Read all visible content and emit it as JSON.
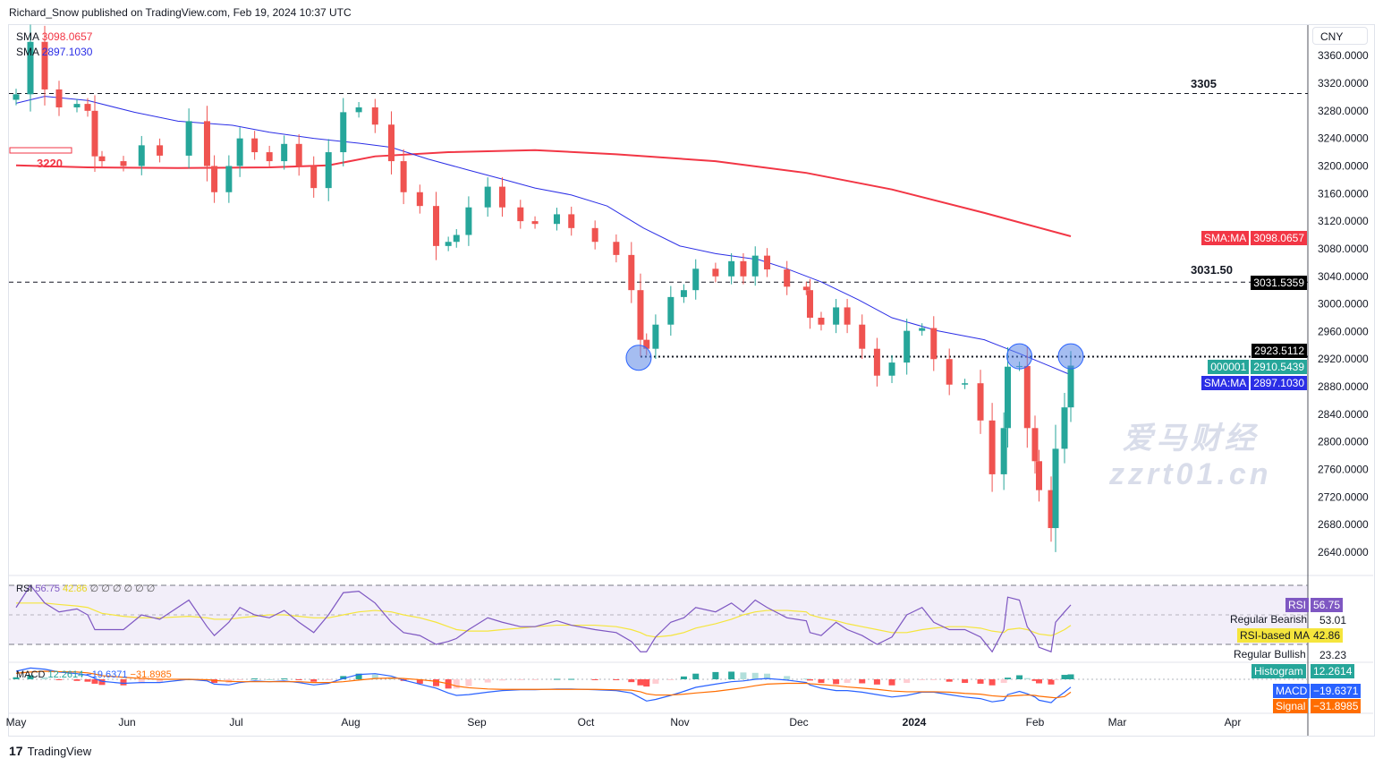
{
  "header": {
    "text": "Richard_Snow published on TradingView.com, Feb 19, 2024 10:37 UTC"
  },
  "currency": "CNY",
  "legend": {
    "sma200": {
      "name": "SMA",
      "value": "3098.0657"
    },
    "sma50": {
      "name": "SMA",
      "value": "2897.1030"
    },
    "rsi": {
      "name": "RSI",
      "value": "56.75",
      "ma": "42.86",
      "extras": "∅ ∅ ∅ ∅ ∅ ∅"
    },
    "macd": {
      "name": "MACD",
      "hist": "12.2614",
      "macd": "−19.6371",
      "signal": "−31.8985"
    }
  },
  "levels": {
    "l3305": "3305",
    "l3031": "3031.50",
    "l3220": "3220"
  },
  "price_labels": {
    "sma200": {
      "tag": "SMA:MA",
      "value": "3098.0657"
    },
    "level": {
      "value": "3031.5359"
    },
    "dotted": {
      "value": "2923.5112"
    },
    "symbol": {
      "tag": "000001",
      "value": "2910.5439"
    },
    "sma50": {
      "tag": "SMA:MA",
      "value": "2897.1030"
    }
  },
  "rsi_labels": {
    "rsi": {
      "tag": "RSI",
      "value": "56.75"
    },
    "bearish": {
      "tag": "Regular Bearish",
      "value": "53.01"
    },
    "ma": {
      "tag": "RSI-based MA",
      "value": "42.86"
    },
    "bullish": {
      "tag": "Regular Bullish",
      "value": "23.23"
    }
  },
  "macd_labels": {
    "hist": {
      "tag": "Histogram",
      "value": "12.2614"
    },
    "macd": {
      "tag": "MACD",
      "value": "−19.6371"
    },
    "signal": {
      "tag": "Signal",
      "value": "−31.8985"
    }
  },
  "footer": {
    "brand": "TradingView"
  },
  "watermark": {
    "line1": "爱马财经",
    "line2": "zzrt01.cn"
  },
  "colors": {
    "up": "#26a69a",
    "down": "#ef5350",
    "sma50": "#2b2ee6",
    "sma200": "#f23645",
    "rsi": "#7e57c2",
    "rsi_ma": "#f5e53c",
    "macd": "#2962ff",
    "signal": "#ff6d00"
  },
  "chart_data": {
    "type": "candlestick",
    "y_ticks": [
      "3360.0000",
      "3320.0000",
      "3280.0000",
      "3240.0000",
      "3200.0000",
      "3160.0000",
      "3120.0000",
      "3080.0000",
      "3040.0000",
      "3000.0000",
      "2960.0000",
      "2920.0000",
      "2880.0000",
      "2840.0000",
      "2800.0000",
      "2760.0000",
      "2720.0000",
      "2680.0000",
      "2640.0000"
    ],
    "x_ticks": [
      {
        "date": "2023-05-01",
        "label": "May"
      },
      {
        "date": "2023-06-01",
        "label": "Jun"
      },
      {
        "date": "2023-07-01",
        "label": "Jul"
      },
      {
        "date": "2023-08-01",
        "label": "Aug"
      },
      {
        "date": "2023-09-01",
        "label": "Sep"
      },
      {
        "date": "2023-10-01",
        "label": "Oct"
      },
      {
        "date": "2023-11-01",
        "label": "Nov"
      },
      {
        "date": "2023-12-01",
        "label": "Dec"
      },
      {
        "date": "2024-01-01",
        "label": "2024"
      },
      {
        "date": "2024-02-01",
        "label": "Feb"
      },
      {
        "date": "2024-03-01",
        "label": "Mar"
      },
      {
        "date": "2024-04-01",
        "label": "Apr"
      }
    ],
    "dates": [
      "2023-05-01",
      "2023-05-05",
      "2023-05-09",
      "2023-05-13",
      "2023-05-18",
      "2023-05-21",
      "2023-05-23",
      "2023-05-25",
      "2023-05-31",
      "2023-06-05",
      "2023-06-10",
      "2023-06-18",
      "2023-06-23",
      "2023-06-25",
      "2023-06-29",
      "2023-07-02",
      "2023-07-06",
      "2023-07-10",
      "2023-07-14",
      "2023-07-18",
      "2023-07-22",
      "2023-07-26",
      "2023-07-30",
      "2023-08-03",
      "2023-08-07",
      "2023-08-11",
      "2023-08-14",
      "2023-08-18",
      "2023-08-22",
      "2023-08-25",
      "2023-08-27",
      "2023-08-30",
      "2023-09-04",
      "2023-09-08",
      "2023-09-13",
      "2023-09-17",
      "2023-09-23",
      "2023-09-27",
      "2023-10-04",
      "2023-10-11",
      "2023-10-16",
      "2023-10-19",
      "2023-10-21",
      "2023-10-24",
      "2023-10-29",
      "2023-11-02",
      "2023-11-05",
      "2023-11-10",
      "2023-11-14",
      "2023-11-17",
      "2023-11-20",
      "2023-11-23",
      "2023-11-28",
      "2023-12-03",
      "2023-12-04",
      "2023-12-07",
      "2023-12-11",
      "2023-12-14",
      "2023-12-18",
      "2023-12-22",
      "2023-12-26",
      "2023-12-30",
      "2024-01-03",
      "2024-01-06",
      "2024-01-10",
      "2024-01-14",
      "2024-01-18",
      "2024-01-21",
      "2024-01-24",
      "2024-01-25",
      "2024-01-28",
      "2024-01-30",
      "2024-02-01",
      "2024-02-02",
      "2024-02-05",
      "2024-02-06",
      "2024-02-08",
      "2024-02-19"
    ],
    "close": [
      3304,
      3380,
      3311,
      3285,
      3290,
      3280,
      3214,
      3207,
      3200,
      3230,
      3215,
      3265,
      3200,
      3162,
      3200,
      3240,
      3220,
      3207,
      3232,
      3200,
      3168,
      3220,
      3278,
      3285,
      3260,
      3207,
      3162,
      3142,
      3084,
      3090,
      3100,
      3140,
      3170,
      3140,
      3120,
      3116,
      3130,
      3110,
      3090,
      3071,
      3020,
      2948,
      2935,
      2970,
      3010,
      3020,
      3051,
      3040,
      3062,
      3040,
      3070,
      3050,
      3025,
      3020,
      2980,
      2970,
      2995,
      2970,
      2935,
      2896,
      2915,
      2961,
      2965,
      2920,
      2883,
      2885,
      2831,
      2753,
      2820,
      2909,
      2910,
      2820,
      2772,
      2730,
      2675,
      2790,
      2850,
      2910.5439
    ],
    "sma50": [
      [
        "2023-05-01",
        3291
      ],
      [
        "2023-05-09",
        3301
      ],
      [
        "2023-05-21",
        3295
      ],
      [
        "2023-06-03",
        3278
      ],
      [
        "2023-06-15",
        3265
      ],
      [
        "2023-06-30",
        3259
      ],
      [
        "2023-07-10",
        3249
      ],
      [
        "2023-07-22",
        3240
      ],
      [
        "2023-08-03",
        3233
      ],
      [
        "2023-08-11",
        3227
      ],
      [
        "2023-08-20",
        3210
      ],
      [
        "2023-08-30",
        3194
      ],
      [
        "2023-09-08",
        3181
      ],
      [
        "2023-09-17",
        3168
      ],
      [
        "2023-09-27",
        3158
      ],
      [
        "2023-10-08",
        3142
      ],
      [
        "2023-10-20",
        3110
      ],
      [
        "2023-11-01",
        3084
      ],
      [
        "2023-11-10",
        3073
      ],
      [
        "2023-11-21",
        3064
      ],
      [
        "2023-11-28",
        3051
      ],
      [
        "2023-12-07",
        3032
      ],
      [
        "2023-12-17",
        3006
      ],
      [
        "2023-12-26",
        2980
      ],
      [
        "2024-01-07",
        2961
      ],
      [
        "2024-01-19",
        2948
      ],
      [
        "2024-01-28",
        2928
      ],
      [
        "2024-02-05",
        2909
      ],
      [
        "2024-02-19",
        2897.103
      ]
    ],
    "sma200": [
      [
        "2023-05-01",
        3201
      ],
      [
        "2023-05-21",
        3198
      ],
      [
        "2023-06-15",
        3197
      ],
      [
        "2023-07-10",
        3198
      ],
      [
        "2023-07-26",
        3201
      ],
      [
        "2023-08-07",
        3214
      ],
      [
        "2023-08-25",
        3220
      ],
      [
        "2023-09-17",
        3223
      ],
      [
        "2023-10-11",
        3217
      ],
      [
        "2023-11-10",
        3207
      ],
      [
        "2023-12-03",
        3190
      ],
      [
        "2023-12-26",
        3166
      ],
      [
        "2024-01-19",
        3132
      ],
      [
        "2024-02-19",
        3098.0657
      ]
    ],
    "rsi": [
      55,
      70,
      58,
      52,
      54,
      50,
      40,
      40,
      40,
      50,
      47,
      60,
      42,
      36,
      45,
      55,
      50,
      48,
      53,
      45,
      38,
      50,
      65,
      66,
      58,
      45,
      38,
      36,
      30,
      32,
      34,
      40,
      48,
      45,
      42,
      42,
      46,
      43,
      40,
      38,
      32,
      25,
      25,
      35,
      45,
      48,
      55,
      52,
      58,
      52,
      60,
      55,
      48,
      46,
      38,
      36,
      45,
      40,
      36,
      30,
      35,
      50,
      55,
      45,
      40,
      40,
      35,
      25,
      40,
      62,
      60,
      42,
      35,
      28,
      25,
      45,
      52,
      56.75
    ],
    "rsi_ma": [
      58,
      58,
      58,
      57,
      56,
      55,
      53,
      51,
      49,
      48,
      48,
      49,
      48,
      47,
      47,
      48,
      49,
      50,
      50,
      49,
      48,
      48,
      50,
      52,
      53,
      52,
      50,
      48,
      45,
      42,
      40,
      39,
      39,
      40,
      41,
      42,
      43,
      43,
      43,
      42,
      40,
      38,
      36,
      35,
      36,
      38,
      41,
      44,
      47,
      50,
      52,
      53,
      53,
      52,
      50,
      48,
      46,
      44,
      42,
      40,
      38,
      38,
      40,
      41,
      42,
      42,
      41,
      39,
      38,
      40,
      41,
      40,
      38,
      37,
      36,
      37,
      40,
      42.86
    ],
    "rsi_bands": [
      70,
      50,
      30
    ],
    "macd": [
      20,
      28,
      25,
      18,
      14,
      10,
      2,
      -5,
      -10,
      -8,
      -8,
      0,
      -4,
      -12,
      -14,
      -8,
      -4,
      -6,
      -4,
      -8,
      -14,
      -10,
      2,
      12,
      14,
      8,
      -2,
      -12,
      -22,
      -34,
      -40,
      -38,
      -32,
      -28,
      -26,
      -26,
      -24,
      -24,
      -26,
      -28,
      -34,
      -46,
      -54,
      -50,
      -40,
      -30,
      -20,
      -12,
      -6,
      -4,
      0,
      2,
      -2,
      -8,
      -14,
      -22,
      -28,
      -28,
      -32,
      -38,
      -44,
      -40,
      -32,
      -32,
      -38,
      -44,
      -48,
      -56,
      -52,
      -38,
      -30,
      -36,
      -44,
      -52,
      -58,
      -48,
      -32,
      -19.6371
    ],
    "signal": [
      15,
      18,
      20,
      19,
      18,
      16,
      13,
      9,
      5,
      2,
      0,
      0,
      -1,
      -3,
      -5,
      -6,
      -6,
      -6,
      -6,
      -6,
      -8,
      -8,
      -6,
      -2,
      2,
      3,
      2,
      -1,
      -5,
      -11,
      -17,
      -21,
      -24,
      -25,
      -25,
      -25,
      -25,
      -25,
      -25,
      -26,
      -27,
      -31,
      -36,
      -39,
      -39,
      -37,
      -34,
      -30,
      -25,
      -21,
      -16,
      -12,
      -10,
      -10,
      -11,
      -13,
      -16,
      -19,
      -22,
      -25,
      -29,
      -31,
      -31,
      -31,
      -32,
      -35,
      -37,
      -41,
      -43,
      -42,
      -40,
      -39,
      -40,
      -42,
      -45,
      -46,
      -43,
      -31.8985
    ],
    "horizontal_levels": [
      3305,
      3031.5359,
      2923.5112
    ],
    "highlight_circles": [
      [
        "2023-10-19",
        2922
      ],
      [
        "2024-01-28",
        2924
      ],
      [
        "2024-02-19",
        2924
      ]
    ]
  }
}
